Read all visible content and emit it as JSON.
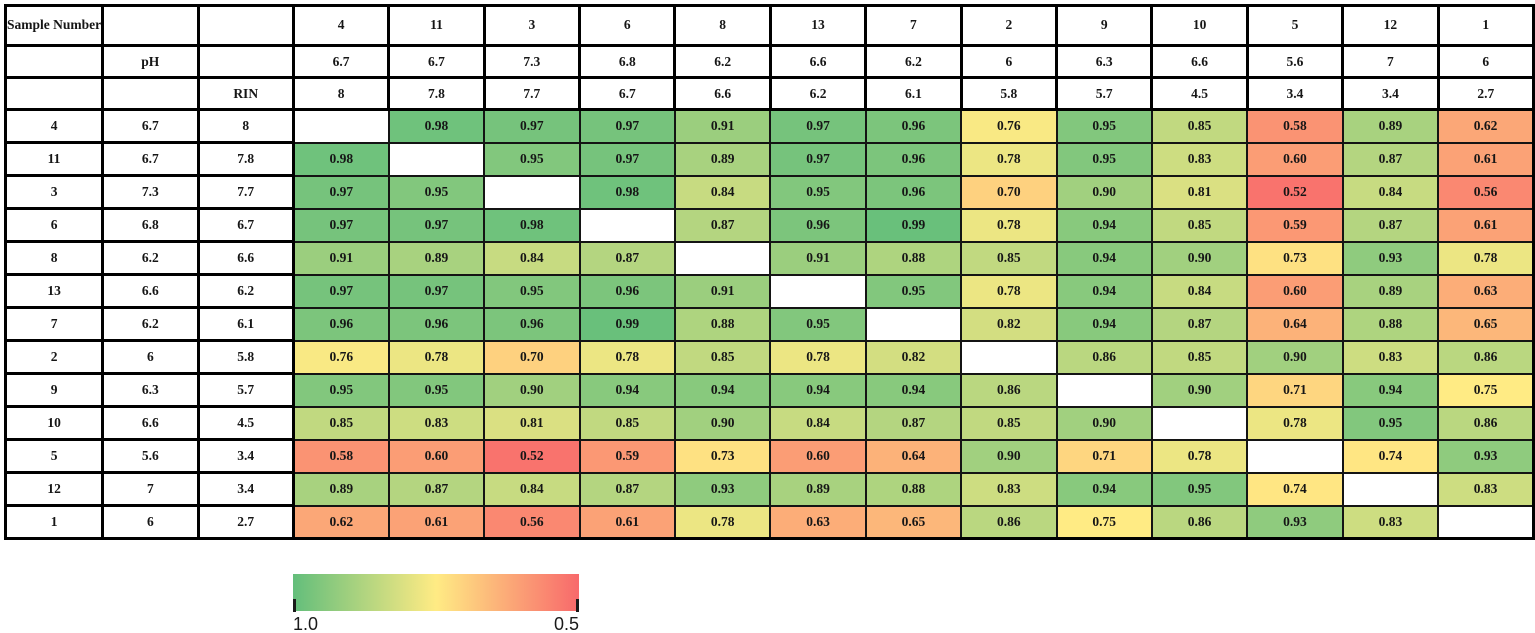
{
  "chart_data": {
    "type": "heatmap",
    "headers": {
      "sample_number": "Sample Number",
      "ph": "pH",
      "rin": "RIN"
    },
    "samples": [
      {
        "id": "4",
        "ph": "6.7",
        "rin": "8"
      },
      {
        "id": "11",
        "ph": "6.7",
        "rin": "7.8"
      },
      {
        "id": "3",
        "ph": "7.3",
        "rin": "7.7"
      },
      {
        "id": "6",
        "ph": "6.8",
        "rin": "6.7"
      },
      {
        "id": "8",
        "ph": "6.2",
        "rin": "6.6"
      },
      {
        "id": "13",
        "ph": "6.6",
        "rin": "6.2"
      },
      {
        "id": "7",
        "ph": "6.2",
        "rin": "6.1"
      },
      {
        "id": "2",
        "ph": "6",
        "rin": "5.8"
      },
      {
        "id": "9",
        "ph": "6.3",
        "rin": "5.7"
      },
      {
        "id": "10",
        "ph": "6.6",
        "rin": "4.5"
      },
      {
        "id": "5",
        "ph": "5.6",
        "rin": "3.4"
      },
      {
        "id": "12",
        "ph": "7",
        "rin": "3.4"
      },
      {
        "id": "1",
        "ph": "6",
        "rin": "2.7"
      }
    ],
    "matrix": [
      [
        null,
        "0.98",
        "0.97",
        "0.97",
        "0.91",
        "0.97",
        "0.96",
        "0.76",
        "0.95",
        "0.85",
        "0.58",
        "0.89",
        "0.62"
      ],
      [
        "0.98",
        null,
        "0.95",
        "0.97",
        "0.89",
        "0.97",
        "0.96",
        "0.78",
        "0.95",
        "0.83",
        "0.60",
        "0.87",
        "0.61"
      ],
      [
        "0.97",
        "0.95",
        null,
        "0.98",
        "0.84",
        "0.95",
        "0.96",
        "0.70",
        "0.90",
        "0.81",
        "0.52",
        "0.84",
        "0.56"
      ],
      [
        "0.97",
        "0.97",
        "0.98",
        null,
        "0.87",
        "0.96",
        "0.99",
        "0.78",
        "0.94",
        "0.85",
        "0.59",
        "0.87",
        "0.61"
      ],
      [
        "0.91",
        "0.89",
        "0.84",
        "0.87",
        null,
        "0.91",
        "0.88",
        "0.85",
        "0.94",
        "0.90",
        "0.73",
        "0.93",
        "0.78"
      ],
      [
        "0.97",
        "0.97",
        "0.95",
        "0.96",
        "0.91",
        null,
        "0.95",
        "0.78",
        "0.94",
        "0.84",
        "0.60",
        "0.89",
        "0.63"
      ],
      [
        "0.96",
        "0.96",
        "0.96",
        "0.99",
        "0.88",
        "0.95",
        null,
        "0.82",
        "0.94",
        "0.87",
        "0.64",
        "0.88",
        "0.65"
      ],
      [
        "0.76",
        "0.78",
        "0.70",
        "0.78",
        "0.85",
        "0.78",
        "0.82",
        null,
        "0.86",
        "0.85",
        "0.90",
        "0.83",
        "0.86"
      ],
      [
        "0.95",
        "0.95",
        "0.90",
        "0.94",
        "0.94",
        "0.94",
        "0.94",
        "0.86",
        null,
        "0.90",
        "0.71",
        "0.94",
        "0.75"
      ],
      [
        "0.85",
        "0.83",
        "0.81",
        "0.85",
        "0.90",
        "0.84",
        "0.87",
        "0.85",
        "0.90",
        null,
        "0.78",
        "0.95",
        "0.86"
      ],
      [
        "0.58",
        "0.60",
        "0.52",
        "0.59",
        "0.73",
        "0.60",
        "0.64",
        "0.90",
        "0.71",
        "0.78",
        null,
        "0.74",
        "0.93"
      ],
      [
        "0.89",
        "0.87",
        "0.84",
        "0.87",
        "0.93",
        "0.89",
        "0.88",
        "0.83",
        "0.94",
        "0.95",
        "0.74",
        null,
        "0.83"
      ],
      [
        "0.62",
        "0.61",
        "0.56",
        "0.61",
        "0.78",
        "0.63",
        "0.65",
        "0.86",
        "0.75",
        "0.86",
        "0.93",
        "0.83",
        null
      ]
    ],
    "colorscale": {
      "min_value": 0.5,
      "min_color": "#F8696B",
      "mid_value": 0.75,
      "mid_color": "#FFEB84",
      "max_value": 1.0,
      "max_color": "#63BE7B"
    },
    "legend": {
      "left_label": "1.0",
      "right_label": "0.5"
    }
  }
}
